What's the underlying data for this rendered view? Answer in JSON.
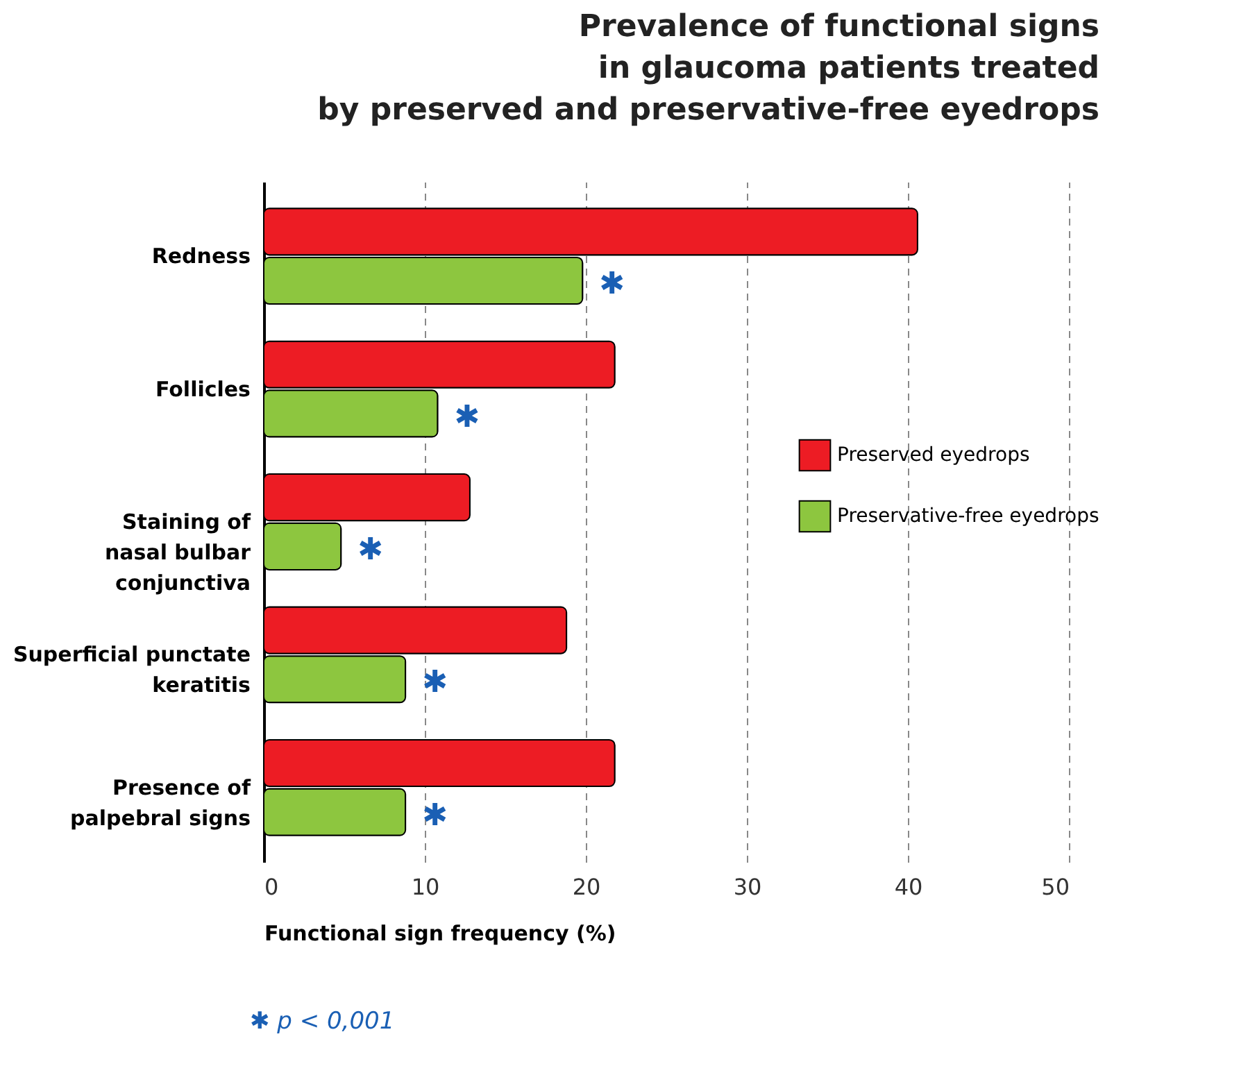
{
  "chart_data": {
    "type": "bar",
    "orientation": "horizontal",
    "title": "Prevalence of functional signs\nin glaucoma patients treated\nby preserved and preservative-free eyedrops",
    "categories": [
      "Redness",
      "Follicles",
      "Staining of\nnasal bulbar\nconjunctiva",
      "Superficial punctate\nkeratitis",
      "Presence of\npalpebral signs"
    ],
    "series": [
      {
        "name": "Preserved eyedrops",
        "color": "#ed1c24",
        "values": [
          40.6,
          21.8,
          12.8,
          18.8,
          21.8
        ]
      },
      {
        "name": "Preservative-free eyedrops",
        "color": "#8dc63f",
        "values": [
          19.8,
          10.8,
          4.8,
          8.8,
          8.8
        ]
      }
    ],
    "xlabel": "Functional sign frequency (%)",
    "xlim": [
      0,
      50
    ],
    "xticks": [
      0,
      10,
      20,
      30,
      40,
      50
    ],
    "grid": "x",
    "legend": "right",
    "annotations": [
      {
        "text": "✱",
        "x": 19.8,
        "y": "Redness"
      },
      {
        "text": "✱",
        "x": 10.8,
        "y": "Follicles"
      },
      {
        "text": "✱",
        "x": 4.8,
        "y": "Staining of\nnasal bulbar\nconjunctiva"
      },
      {
        "text": "✱",
        "x": 8.8,
        "y": "Superficial punctate\nkeratitis"
      },
      {
        "text": "✱",
        "x": 8.8,
        "y": "Presence of\npalpebral signs"
      },
      "✱ p < 0,001"
    ]
  }
}
